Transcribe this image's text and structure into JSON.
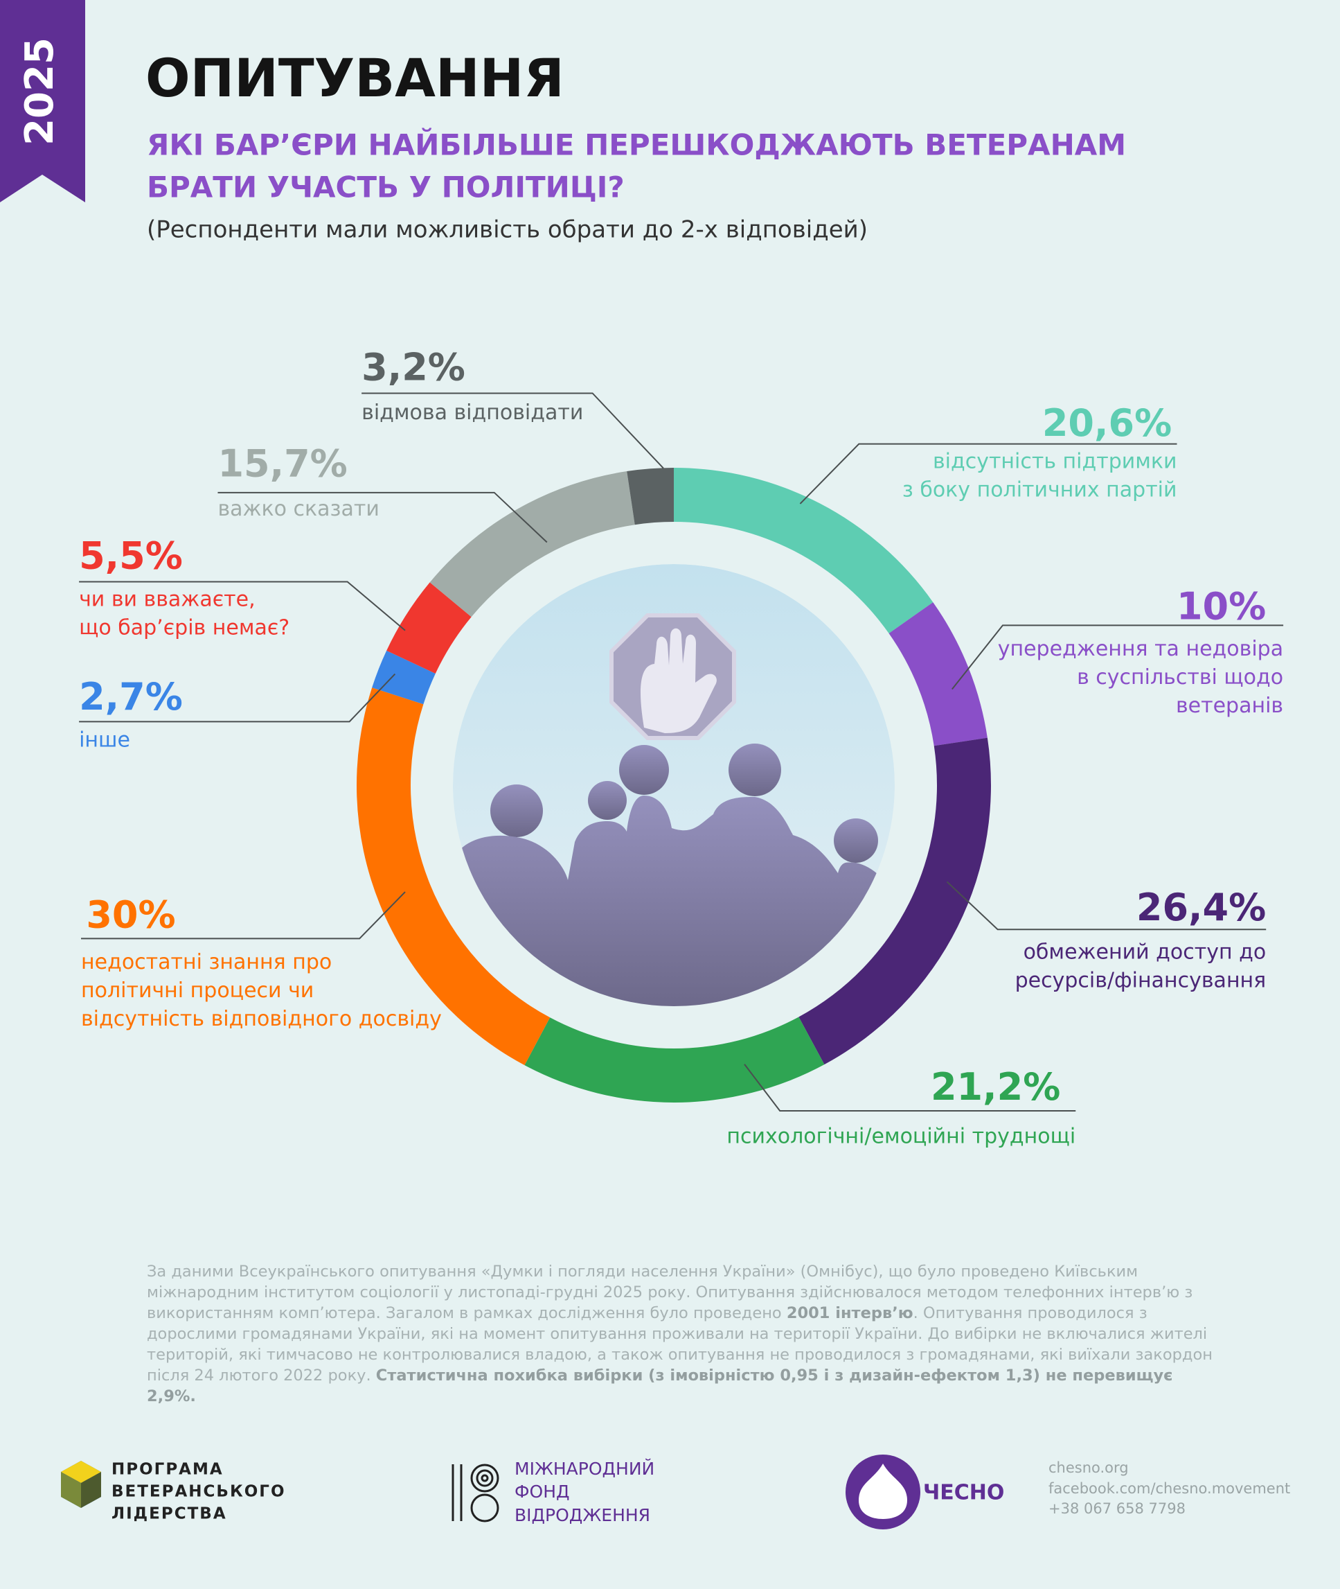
{
  "year": "2025",
  "header": {
    "title": "ОПИТУВАННЯ",
    "question": [
      "ЯКІ БАР’ЄРИ НАЙБІЛЬШЕ ПЕРЕШКОДЖАЮТЬ ВЕТЕРАНАМ",
      "БРАТИ УЧАСТЬ У ПОЛІТИЦІ?"
    ],
    "subtitle": "(Респонденти мали можливість обрати до 2-х відповідей)"
  },
  "chart_data": {
    "type": "donut",
    "categories": [
      [
        "відсутність підтримки",
        "з боку політичних партій"
      ],
      [
        "упередження та недовіра",
        "в суспільстві щодо",
        "ветеранів"
      ],
      [
        "обмежений доступ до",
        "ресурсів/фінансування"
      ],
      [
        "психологічні/емоційні труднощі"
      ],
      [
        "недостатні знання про",
        "політичні процеси чи",
        "відсутність відповідного досвіду"
      ],
      [
        "інше"
      ],
      [
        "чи ви вважаєте,",
        "що бар’єрів немає?"
      ],
      [
        "важко сказати"
      ],
      [
        "відмова відповідати"
      ]
    ],
    "values": [
      20.6,
      10,
      26.4,
      21.2,
      30,
      2.7,
      5.5,
      15.7,
      3.2
    ],
    "value_labels": [
      "20,6%",
      "10%",
      "26,4%",
      "21,2%",
      "30%",
      "2,7%",
      "5,5%",
      "15,7%",
      "3,2%"
    ],
    "colors": [
      "#5ecdb2",
      "#8a4fc8",
      "#4b2676",
      "#2fa553",
      "#ff7200",
      "#3a85e6",
      "#f0372f",
      "#a1aca8",
      "#5b6263"
    ]
  },
  "footnote": [
    {
      "text": "За даними Всеукраїнського опитування «Думки і погляди населення України» (Омнібус), що було проведено Київським міжнародним інститутом соціології у листопаді-грудні 2025 року. Опитування здійснювалося методом телефонних інтерв’ю з використанням комп’ютера. Загалом в рамках дослідження було проведено ",
      "bold": false
    },
    {
      "text": "2001 інтерв’ю",
      "bold": true
    },
    {
      "text": ". Опитування проводилося з дорослими громадянами України, які на момент опитування проживали на території України. До вибірки не включалися жителі територій, які тимчасово не контролювалися владою, а також опитування не проводилося з громадянами, які виїхали закордон після 24 лютого 2022 року. ",
      "bold": false
    },
    {
      "text": "Статистична похибка вибірки (з імовірністю 0,95 і з дизайн-ефектом 1,3) не перевищує 2,9%.",
      "bold": true
    }
  ],
  "logos": [
    {
      "lines": [
        "ПРОГРАМА",
        "ВЕТЕРАНСЬКОГО",
        "ЛІДЕРСТВА"
      ]
    },
    {
      "lines": [
        "МІЖНАРОДНИЙ",
        "ФОНД",
        "ВІДРОДЖЕННЯ"
      ]
    },
    {
      "lines": [
        "ЧЕСНО"
      ]
    }
  ],
  "contacts": [
    "chesno.org",
    "facebook.com/chesno.movement",
    "+38 067 658 7798"
  ]
}
